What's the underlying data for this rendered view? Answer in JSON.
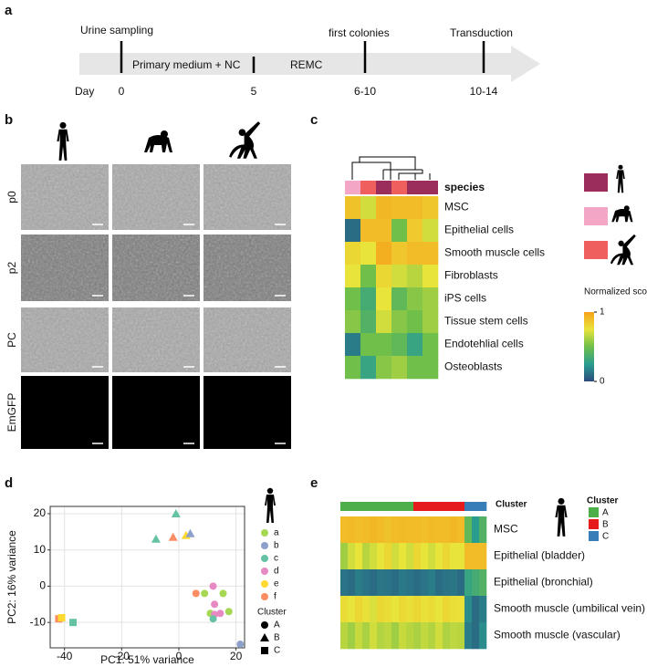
{
  "panel_labels": [
    "a",
    "b",
    "c",
    "d",
    "e"
  ],
  "timeline": {
    "events": [
      "Urine sampling",
      "first colonies",
      "Transduction"
    ],
    "phases": [
      "Primary medium + NC",
      "REMC"
    ],
    "day_label": "Day",
    "days": [
      "0",
      "5",
      "6-10",
      "10-14"
    ]
  },
  "micrographs": {
    "rows": [
      "p0",
      "p2",
      "PC",
      "EmGFP"
    ]
  },
  "heatmap_c": {
    "species_label": "species",
    "species_colors": [
      "#f4a6c6",
      "#ef5f5e",
      "#9b2d5b",
      "#ef5f5e",
      "#9b2d5b",
      "#9b2d5b"
    ],
    "species_legend_colors": [
      "#9b2d5b",
      "#f4a6c6",
      "#ef5f5e"
    ],
    "rows": [
      "MSC",
      "Epithelial cells",
      "Smooth muscle cells",
      "Fibroblasts",
      "iPS cells",
      "Tissue stem cells",
      "Endotehlial cells",
      "Osteoblasts"
    ],
    "values": [
      [
        0.88,
        0.7,
        0.92,
        0.9,
        0.9,
        0.86
      ],
      [
        0.1,
        0.9,
        0.9,
        0.5,
        0.85,
        0.7
      ],
      [
        0.8,
        0.75,
        0.95,
        0.86,
        0.9,
        0.9
      ],
      [
        0.75,
        0.5,
        0.8,
        0.7,
        0.65,
        0.75
      ],
      [
        0.5,
        0.35,
        0.75,
        0.45,
        0.55,
        0.6
      ],
      [
        0.55,
        0.4,
        0.7,
        0.55,
        0.5,
        0.6
      ],
      [
        0.15,
        0.5,
        0.5,
        0.45,
        0.3,
        0.5
      ],
      [
        0.5,
        0.3,
        0.55,
        0.6,
        0.5,
        0.5
      ]
    ],
    "legend_title": "Normalized score",
    "legend_ticks": [
      1,
      0
    ],
    "colorscale": [
      "#2b4c7e",
      "#2a9d8f",
      "#6fbf4a",
      "#e8e43a",
      "#f7a21b"
    ]
  },
  "pca": {
    "xlabel": "PC1: 51% variance",
    "ylabel": "PC2: 16% variance",
    "xlim": [
      -45,
      23
    ],
    "ylim": [
      -17,
      22
    ],
    "xticks": [
      -40,
      -20,
      0,
      20
    ],
    "yticks": [
      -10,
      0,
      10,
      20
    ],
    "grid": true,
    "samples": [
      {
        "label": "a",
        "color": "#a6d854"
      },
      {
        "label": "b",
        "color": "#8da0cb"
      },
      {
        "label": "c",
        "color": "#66c2a5"
      },
      {
        "label": "d",
        "color": "#e78ac3"
      },
      {
        "label": "e",
        "color": "#ffd92f"
      },
      {
        "label": "f",
        "color": "#fc8d62"
      }
    ],
    "cluster_title": "Cluster",
    "clusters": [
      {
        "label": "A",
        "shape": "circle"
      },
      {
        "label": "B",
        "shape": "triangle"
      },
      {
        "label": "C",
        "shape": "square"
      }
    ],
    "points": [
      {
        "x": -8,
        "y": 13,
        "sample": "c",
        "cluster": "B"
      },
      {
        "x": -1,
        "y": 20,
        "sample": "c",
        "cluster": "B"
      },
      {
        "x": -2,
        "y": 13.5,
        "sample": "f",
        "cluster": "B"
      },
      {
        "x": 2.5,
        "y": 14,
        "sample": "e",
        "cluster": "B"
      },
      {
        "x": 4,
        "y": 14.5,
        "sample": "b",
        "cluster": "B"
      },
      {
        "x": -42,
        "y": -9,
        "sample": "f",
        "cluster": "C"
      },
      {
        "x": -41,
        "y": -8.7,
        "sample": "e",
        "cluster": "C"
      },
      {
        "x": -37,
        "y": -10,
        "sample": "c",
        "cluster": "C"
      },
      {
        "x": 6,
        "y": -2,
        "sample": "f",
        "cluster": "A"
      },
      {
        "x": 9,
        "y": -2,
        "sample": "a",
        "cluster": "A"
      },
      {
        "x": 12,
        "y": 0,
        "sample": "d",
        "cluster": "A"
      },
      {
        "x": 15.5,
        "y": -2,
        "sample": "a",
        "cluster": "A"
      },
      {
        "x": 12.5,
        "y": -5,
        "sample": "d",
        "cluster": "A"
      },
      {
        "x": 11,
        "y": -7.5,
        "sample": "a",
        "cluster": "A"
      },
      {
        "x": 12.5,
        "y": -7.8,
        "sample": "d",
        "cluster": "A"
      },
      {
        "x": 14.5,
        "y": -7.5,
        "sample": "d",
        "cluster": "A"
      },
      {
        "x": 17.5,
        "y": -7,
        "sample": "a",
        "cluster": "A"
      },
      {
        "x": 12,
        "y": -9,
        "sample": "c",
        "cluster": "A"
      },
      {
        "x": 21.5,
        "y": -16,
        "sample": "b",
        "cluster": "A"
      }
    ]
  },
  "heatmap_e": {
    "header": "Cluster",
    "clusters": [
      "A",
      "A",
      "A",
      "A",
      "A",
      "A",
      "A",
      "A",
      "A",
      "A",
      "B",
      "B",
      "B",
      "B",
      "B",
      "B",
      "B",
      "C",
      "C",
      "C"
    ],
    "rows": [
      "MSC",
      "Epithelial (bladder)",
      "Epithelial (bronchial)",
      "Smooth muscle  (umbilical vein)",
      "Smooth muscle (vascular)"
    ],
    "values": [
      [
        0.9,
        0.91,
        0.89,
        0.9,
        0.92,
        0.9,
        0.88,
        0.9,
        0.91,
        0.9,
        0.9,
        0.89,
        0.91,
        0.9,
        0.9,
        0.92,
        0.9,
        0.45,
        0.25,
        0.4
      ],
      [
        0.6,
        0.7,
        0.75,
        0.65,
        0.7,
        0.75,
        0.8,
        0.7,
        0.75,
        0.7,
        0.8,
        0.75,
        0.7,
        0.75,
        0.8,
        0.75,
        0.75,
        0.9,
        0.9,
        0.9
      ],
      [
        0.12,
        0.1,
        0.15,
        0.12,
        0.1,
        0.13,
        0.12,
        0.1,
        0.14,
        0.12,
        0.1,
        0.12,
        0.15,
        0.1,
        0.12,
        0.13,
        0.1,
        0.3,
        0.35,
        0.4
      ],
      [
        0.78,
        0.75,
        0.8,
        0.76,
        0.72,
        0.8,
        0.78,
        0.75,
        0.79,
        0.77,
        0.8,
        0.76,
        0.78,
        0.75,
        0.8,
        0.77,
        0.76,
        0.2,
        0.1,
        0.15
      ],
      [
        0.65,
        0.6,
        0.68,
        0.62,
        0.7,
        0.64,
        0.66,
        0.6,
        0.68,
        0.65,
        0.62,
        0.67,
        0.64,
        0.7,
        0.63,
        0.66,
        0.65,
        0.15,
        0.1,
        0.2
      ]
    ],
    "legend_title": "Cluster",
    "legend": [
      {
        "label": "A",
        "color": "#4daf4a"
      },
      {
        "label": "B",
        "color": "#e41a1c"
      },
      {
        "label": "C",
        "color": "#377eb8"
      }
    ]
  }
}
